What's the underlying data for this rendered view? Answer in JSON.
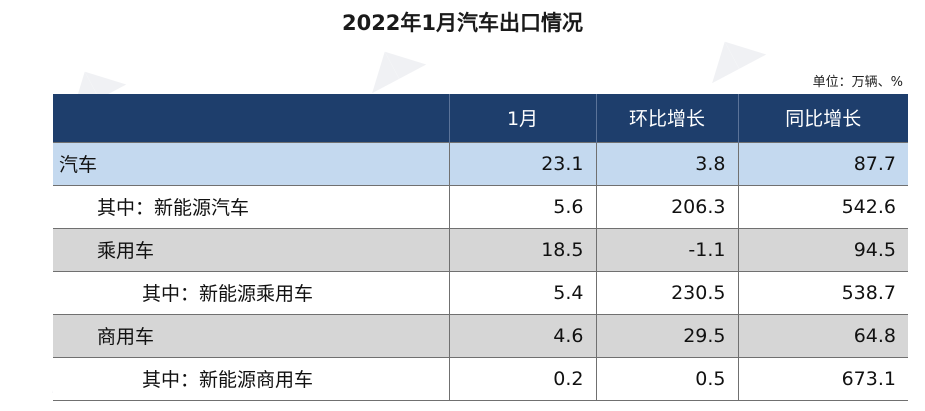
{
  "title": "2022年1月汽车出口情况",
  "unit": "单位：万辆、%",
  "table": {
    "headers": [
      "",
      "1月",
      "环比增长",
      "同比增长"
    ],
    "rows": [
      {
        "name": "汽车",
        "jan": "23.1",
        "mom": "3.8",
        "yoy": "87.7"
      },
      {
        "name": "其中：新能源汽车",
        "jan": "5.6",
        "mom": "206.3",
        "yoy": "542.6"
      },
      {
        "name": "乘用车",
        "jan": "18.5",
        "mom": "-1.1",
        "yoy": "94.5"
      },
      {
        "name": "其中：新能源乘用车",
        "jan": "5.4",
        "mom": "230.5",
        "yoy": "538.7"
      },
      {
        "name": "商用车",
        "jan": "4.6",
        "mom": "29.5",
        "yoy": "64.8"
      },
      {
        "name": "其中：新能源商用车",
        "jan": "0.2",
        "mom": "0.5",
        "yoy": "673.1"
      }
    ]
  },
  "colors": {
    "header_bg": "#1e3e6c",
    "highlight_row": "#c4d9ef",
    "grey_row": "#d6d6d6"
  }
}
